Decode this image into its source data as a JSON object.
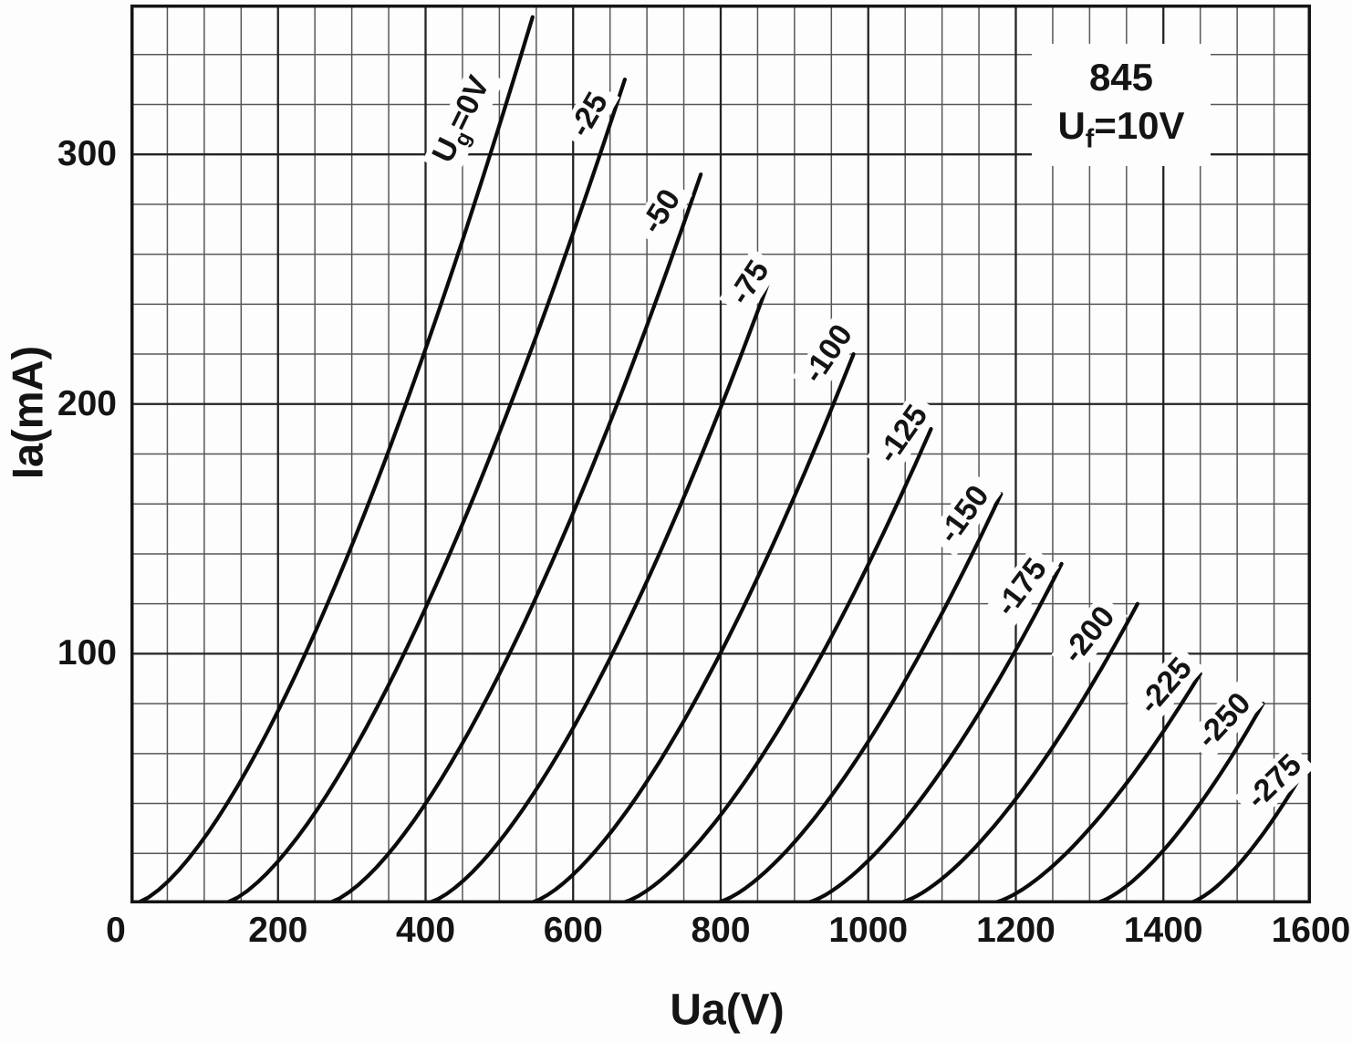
{
  "chart_data": {
    "type": "line",
    "xlabel": "Ua(V)",
    "ylabel": "Ia(mA)",
    "annotation": {
      "line1": "845",
      "line2_pre": "U",
      "line2_sub": "f",
      "line2_post": "=10V",
      "text": "845  Uf=10V"
    },
    "axes": {
      "x": {
        "min": 0,
        "max": 1600,
        "minor_step": 50,
        "major_step": 200
      },
      "y": {
        "min": 0,
        "max": 360,
        "minor_step": 20,
        "major_step": 100
      }
    },
    "x_ticks": [
      "0",
      "200",
      "400",
      "600",
      "800",
      "1000",
      "1200",
      "1400",
      "1600"
    ],
    "x_tick_values": [
      0,
      200,
      400,
      600,
      800,
      1000,
      1200,
      1400,
      1600
    ],
    "y_ticks": [
      "100",
      "200",
      "300"
    ],
    "y_tick_values": [
      100,
      200,
      300
    ],
    "grid": true,
    "legend_position": "labels-on-curves",
    "colors": {
      "curve": "#0b0b0b",
      "grid_minor": "#575757",
      "grid_major": "#232323",
      "background": "#fdfdfd"
    },
    "series": [
      {
        "label": "Ug=0V",
        "label_parts": [
          "U",
          "g",
          "=0V"
        ],
        "ug": 0,
        "ua_start": 5,
        "ua_end": 545,
        "ia_end": 355,
        "exponent": 1.5,
        "points": [
          [
            5,
            0
          ],
          [
            140,
            44
          ],
          [
            275,
            126
          ],
          [
            410,
            231
          ],
          [
            545,
            355
          ]
        ]
      },
      {
        "label": "-25",
        "ug": -25,
        "ua_start": 125,
        "ua_end": 670,
        "ia_end": 330,
        "exponent": 1.5,
        "points": [
          [
            125,
            0
          ],
          [
            261,
            41
          ],
          [
            398,
            117
          ],
          [
            534,
            214
          ],
          [
            670,
            330
          ]
        ]
      },
      {
        "label": "-50",
        "ug": -50,
        "ua_start": 265,
        "ua_end": 773,
        "ia_end": 292,
        "exponent": 1.5,
        "points": [
          [
            265,
            0
          ],
          [
            392,
            37
          ],
          [
            519,
            103
          ],
          [
            646,
            190
          ],
          [
            773,
            292
          ]
        ]
      },
      {
        "label": "-75",
        "ug": -75,
        "ua_start": 400,
        "ua_end": 870,
        "ia_end": 253,
        "exponent": 1.5,
        "points": [
          [
            400,
            0
          ],
          [
            518,
            32
          ],
          [
            635,
            89
          ],
          [
            753,
            164
          ],
          [
            870,
            253
          ]
        ]
      },
      {
        "label": "-100",
        "ug": -100,
        "ua_start": 538,
        "ua_end": 980,
        "ia_end": 220,
        "exponent": 1.5,
        "points": [
          [
            538,
            0
          ],
          [
            649,
            28
          ],
          [
            759,
            78
          ],
          [
            870,
            143
          ],
          [
            980,
            220
          ]
        ]
      },
      {
        "label": "-125",
        "ug": -125,
        "ua_start": 662,
        "ua_end": 1085,
        "ia_end": 190,
        "exponent": 1.5,
        "points": [
          [
            662,
            0
          ],
          [
            768,
            24
          ],
          [
            874,
            67
          ],
          [
            979,
            123
          ],
          [
            1085,
            190
          ]
        ]
      },
      {
        "label": "-150",
        "ug": -150,
        "ua_start": 790,
        "ua_end": 1180,
        "ia_end": 164,
        "exponent": 1.5,
        "points": [
          [
            790,
            0
          ],
          [
            888,
            21
          ],
          [
            985,
            58
          ],
          [
            1083,
            107
          ],
          [
            1180,
            164
          ]
        ]
      },
      {
        "label": "-175",
        "ug": -175,
        "ua_start": 912,
        "ua_end": 1262,
        "ia_end": 136,
        "exponent": 1.5,
        "points": [
          [
            912,
            0
          ],
          [
            1000,
            17
          ],
          [
            1087,
            48
          ],
          [
            1175,
            88
          ],
          [
            1262,
            136
          ]
        ]
      },
      {
        "label": "-200",
        "ug": -200,
        "ua_start": 1038,
        "ua_end": 1365,
        "ia_end": 120,
        "exponent": 1.5,
        "points": [
          [
            1038,
            0
          ],
          [
            1120,
            15
          ],
          [
            1202,
            42
          ],
          [
            1283,
            78
          ],
          [
            1365,
            120
          ]
        ]
      },
      {
        "label": "-225",
        "ug": -225,
        "ua_start": 1165,
        "ua_end": 1450,
        "ia_end": 92,
        "exponent": 1.5,
        "points": [
          [
            1165,
            0
          ],
          [
            1236,
            12
          ],
          [
            1308,
            33
          ],
          [
            1379,
            60
          ],
          [
            1450,
            92
          ]
        ]
      },
      {
        "label": "-250",
        "ug": -250,
        "ua_start": 1305,
        "ua_end": 1535,
        "ia_end": 80,
        "exponent": 1.5,
        "points": [
          [
            1305,
            0
          ],
          [
            1362,
            10
          ],
          [
            1420,
            28
          ],
          [
            1477,
            52
          ],
          [
            1535,
            80
          ]
        ]
      },
      {
        "label": "-275",
        "ug": -275,
        "ua_start": 1432,
        "ua_end": 1600,
        "ia_end": 58,
        "exponent": 1.5,
        "points": [
          [
            1432,
            0
          ],
          [
            1474,
            7
          ],
          [
            1516,
            21
          ],
          [
            1558,
            38
          ],
          [
            1600,
            58
          ]
        ]
      }
    ]
  }
}
